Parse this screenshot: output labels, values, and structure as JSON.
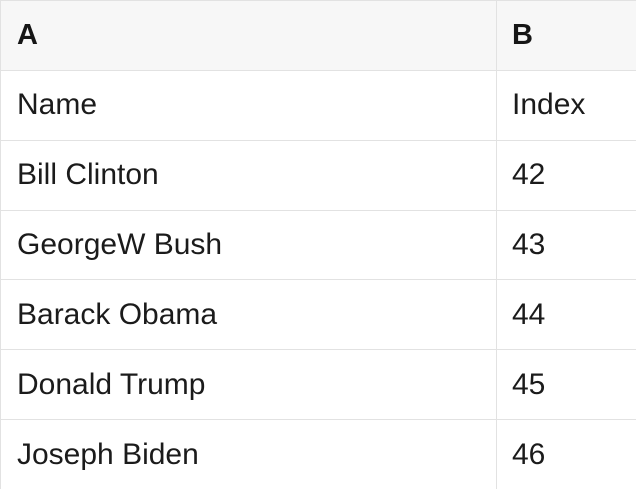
{
  "table": {
    "column_headers": [
      {
        "label": "A"
      },
      {
        "label": "B"
      }
    ],
    "rows": [
      {
        "a": "Name",
        "b": "Index"
      },
      {
        "a": "Bill Clinton",
        "b": "42"
      },
      {
        "a": "GeorgeW Bush",
        "b": "43"
      },
      {
        "a": "Barack Obama",
        "b": "44"
      },
      {
        "a": "Donald Trump",
        "b": "45"
      },
      {
        "a": "Joseph Biden",
        "b": "46"
      }
    ],
    "colors": {
      "header_background": "#f7f7f7",
      "grid_border": "#e2e2e2",
      "text": "#1b1b1b"
    }
  }
}
